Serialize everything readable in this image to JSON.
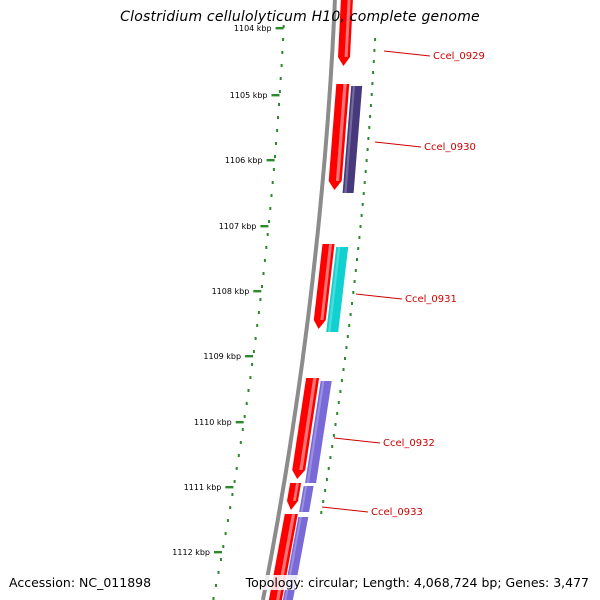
{
  "title": "Clostridium cellulolyticum H10, complete genome",
  "accession_text": "Accession: NC_011898",
  "summary_text": "Topology: circular; Length: 4,068,724 bp; Genes: 3,477",
  "ticks": [
    {
      "label": "1104 kbp",
      "kbp": 1104
    },
    {
      "label": "1105 kbp",
      "kbp": 1105
    },
    {
      "label": "1106 kbp",
      "kbp": 1106
    },
    {
      "label": "1107 kbp",
      "kbp": 1107
    },
    {
      "label": "1108 kbp",
      "kbp": 1108
    },
    {
      "label": "1109 kbp",
      "kbp": 1109
    },
    {
      "label": "1110 kbp",
      "kbp": 1110
    },
    {
      "label": "1111 kbp",
      "kbp": 1111
    },
    {
      "label": "1112 kbp",
      "kbp": 1112
    }
  ],
  "genes": [
    {
      "label": "Ccel_0929"
    },
    {
      "label": "Ccel_0930"
    },
    {
      "label": "Ccel_0931"
    },
    {
      "label": "Ccel_0932"
    },
    {
      "label": "Ccel_0933"
    }
  ],
  "colors": {
    "backbone": "#8c8c8c",
    "cds": "#ff0000",
    "cds_light": "#ff9c9c",
    "cog_navy": "#463a7c",
    "cog_cyan": "#10d0d0",
    "cog_purple": "#7a6ad8",
    "tick_mark": "#2c8a2c",
    "gene_label": "#cc0000"
  }
}
